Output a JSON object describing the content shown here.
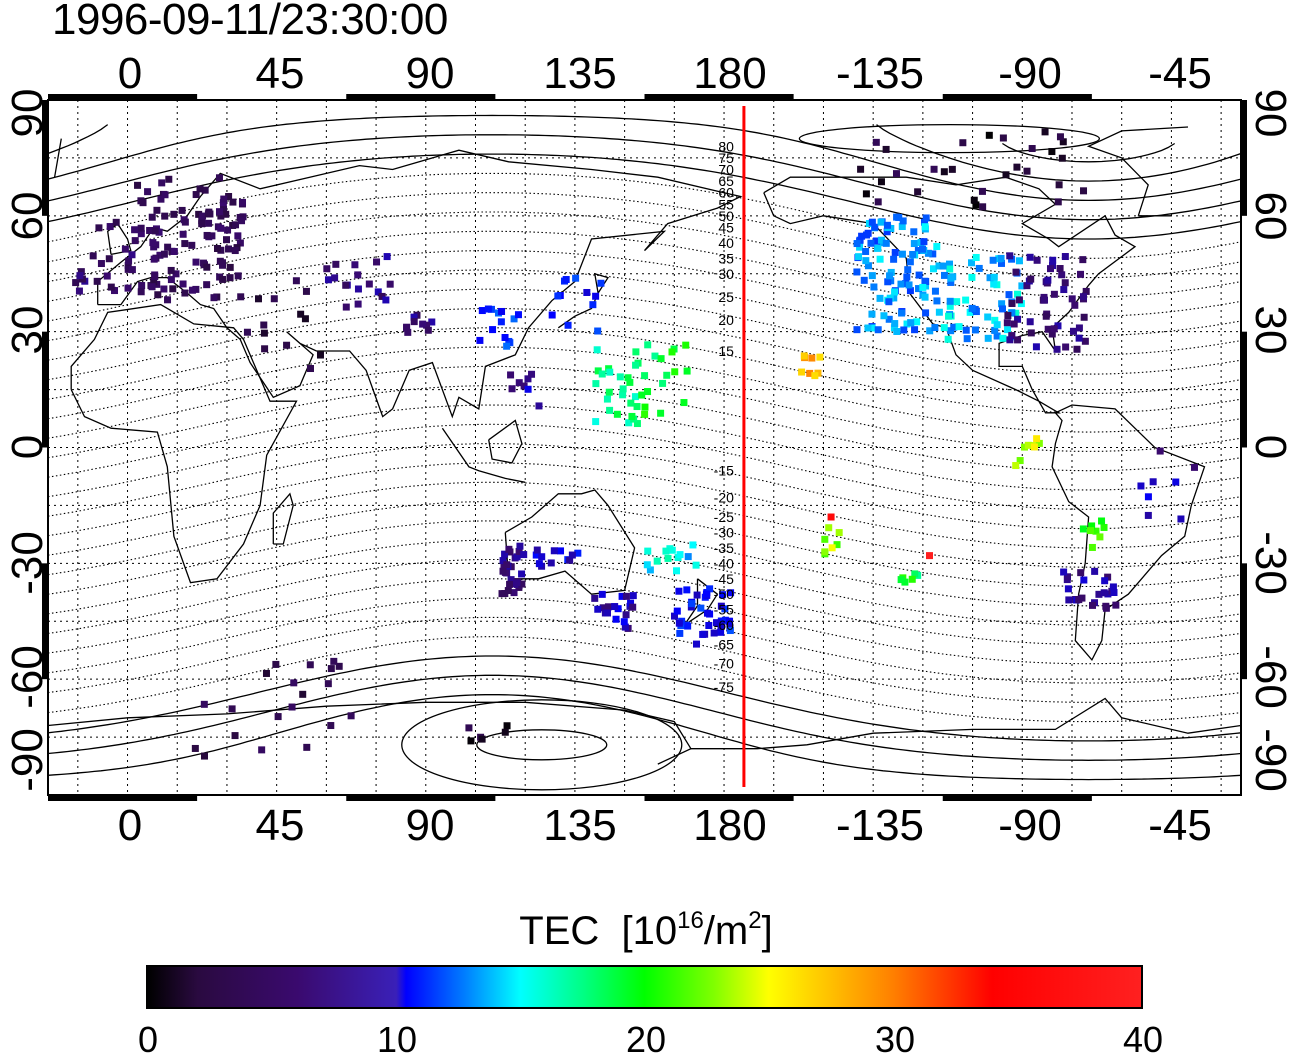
{
  "title": "1996-09-11/23:30:00",
  "axes": {
    "x_ticks_top": [
      "0",
      "45",
      "90",
      "135",
      "180",
      "-135",
      "-90",
      "-45"
    ],
    "x_ticks_bottom": [
      "0",
      "45",
      "90",
      "135",
      "180",
      "-135",
      "-90",
      "-45"
    ],
    "y_ticks_left": [
      "90",
      "60",
      "30",
      "0",
      "-30",
      "-60",
      "-90"
    ],
    "y_ticks_right": [
      "90",
      "60",
      "30",
      "0",
      "-30",
      "-60",
      "-90"
    ]
  },
  "contour_labels": [
    "80",
    "75",
    "70",
    "65",
    "60",
    "55",
    "50",
    "45",
    "40",
    "35",
    "30",
    "25",
    "20",
    "15",
    "-15",
    "-20",
    "-25",
    "-30",
    "-35",
    "-40",
    "-45",
    "-50",
    "-55",
    "-60",
    "-65",
    "-70",
    "-75"
  ],
  "colorbar": {
    "title": "TEC",
    "unit_base": "[10",
    "unit_exp": "16",
    "unit_mid": "/m",
    "unit_exp2": "2",
    "unit_end": "]",
    "ticks": [
      "0",
      "10",
      "20",
      "30",
      "40"
    ],
    "range": [
      0,
      40
    ]
  },
  "colors": {
    "terminator_line": "#ff0000",
    "grid": "#000000"
  },
  "chart_data": {
    "type": "scatter",
    "title": "1996-09-11/23:30:00",
    "xlabel": "",
    "ylabel": "",
    "x_range": [
      -24,
      336
    ],
    "ylim": [
      -90,
      90
    ],
    "grid": true,
    "colorbar_label": "TEC [10^16/m^2]",
    "colorbar_range": [
      0,
      40
    ],
    "red_line_longitude": 186,
    "clusters": [
      {
        "lon_range": [
          0,
          35
        ],
        "lat_range": [
          38,
          70
        ],
        "tec": 4,
        "n": 110
      },
      {
        "lon_range": [
          -16,
          10
        ],
        "lat_range": [
          40,
          60
        ],
        "tec": 5,
        "n": 25
      },
      {
        "lon_range": [
          60,
          80
        ],
        "lat_range": [
          35,
          50
        ],
        "tec": 6,
        "n": 18
      },
      {
        "lon_range": [
          30,
          60
        ],
        "lat_range": [
          20,
          45
        ],
        "tec": 3,
        "n": 14
      },
      {
        "lon_range": [
          84,
          92
        ],
        "lat_range": [
          29,
          35
        ],
        "tec": 6,
        "n": 10
      },
      {
        "lon_range": [
          104,
          118
        ],
        "lat_range": [
          26,
          37
        ],
        "tec": 11,
        "n": 14
      },
      {
        "lon_range": [
          128,
          143
        ],
        "lat_range": [
          30,
          44
        ],
        "tec": 10,
        "n": 12
      },
      {
        "lon_range": [
          140,
          155
        ],
        "lat_range": [
          5,
          27
        ],
        "tec": 17,
        "n": 25
      },
      {
        "lon_range": [
          152,
          170
        ],
        "lat_range": [
          8,
          30
        ],
        "tec": 19,
        "n": 18
      },
      {
        "lon_range": [
          115,
          125
        ],
        "lat_range": [
          10,
          20
        ],
        "tec": 8,
        "n": 8
      },
      {
        "lon_range": [
          113,
          120
        ],
        "lat_range": [
          -38,
          -25
        ],
        "tec": 6,
        "n": 30
      },
      {
        "lon_range": [
          123,
          140
        ],
        "lat_range": [
          -32,
          -25
        ],
        "tec": 9,
        "n": 12
      },
      {
        "lon_range": [
          140,
          153
        ],
        "lat_range": [
          -47,
          -38
        ],
        "tec": 8,
        "n": 20
      },
      {
        "lon_range": [
          156,
          172
        ],
        "lat_range": [
          -32,
          -24
        ],
        "tec": 15,
        "n": 14
      },
      {
        "lon_range": [
          165,
          183
        ],
        "lat_range": [
          -52,
          -36
        ],
        "tec": 10,
        "n": 40
      },
      {
        "lon_range": [
          -158,
          -150
        ],
        "lat_range": [
          16,
          24
        ],
        "tec": 28,
        "n": 8
      },
      {
        "lon_range": [
          -150,
          -145
        ],
        "lat_range": [
          -28,
          -20
        ],
        "tec": 23,
        "n": 7
      },
      {
        "lon_range": [
          -150,
          -147
        ],
        "lat_range": [
          -18,
          -18
        ],
        "tec": 35,
        "n": 1
      },
      {
        "lon_range": [
          -118,
          -118
        ],
        "lat_range": [
          -28,
          -28
        ],
        "tec": 38,
        "n": 1
      },
      {
        "lon_range": [
          -128,
          -120
        ],
        "lat_range": [
          -35,
          -32
        ],
        "tec": 19,
        "n": 6
      },
      {
        "lon_range": [
          -140,
          -115
        ],
        "lat_range": [
          30,
          60
        ],
        "tec": 13,
        "n": 110
      },
      {
        "lon_range": [
          -115,
          -90
        ],
        "lat_range": [
          28,
          50
        ],
        "tec": 14,
        "n": 60
      },
      {
        "lon_range": [
          -95,
          -70
        ],
        "lat_range": [
          25,
          50
        ],
        "tec": 6,
        "n": 55
      },
      {
        "lon_range": [
          -140,
          -70
        ],
        "lat_range": [
          62,
          82
        ],
        "tec": 2,
        "n": 30
      },
      {
        "lon_range": [
          -92,
          -84
        ],
        "lat_range": [
          -6,
          4
        ],
        "tec": 24,
        "n": 8
      },
      {
        "lon_range": [
          -76,
          -64
        ],
        "lat_range": [
          -26,
          -18
        ],
        "tec": 21,
        "n": 8
      },
      {
        "lon_range": [
          -78,
          -60
        ],
        "lat_range": [
          -42,
          -32
        ],
        "tec": 7,
        "n": 25
      },
      {
        "lon_range": [
          -55,
          -38
        ],
        "lat_range": [
          -20,
          8
        ],
        "tec": 8,
        "n": 8
      },
      {
        "lon_range": [
          20,
          75
        ],
        "lat_range": [
          -80,
          -55
        ],
        "tec": 3,
        "n": 20
      },
      {
        "lon_range": [
          100,
          120
        ],
        "lat_range": [
          -76,
          -72
        ],
        "tec": 2,
        "n": 6
      }
    ]
  }
}
